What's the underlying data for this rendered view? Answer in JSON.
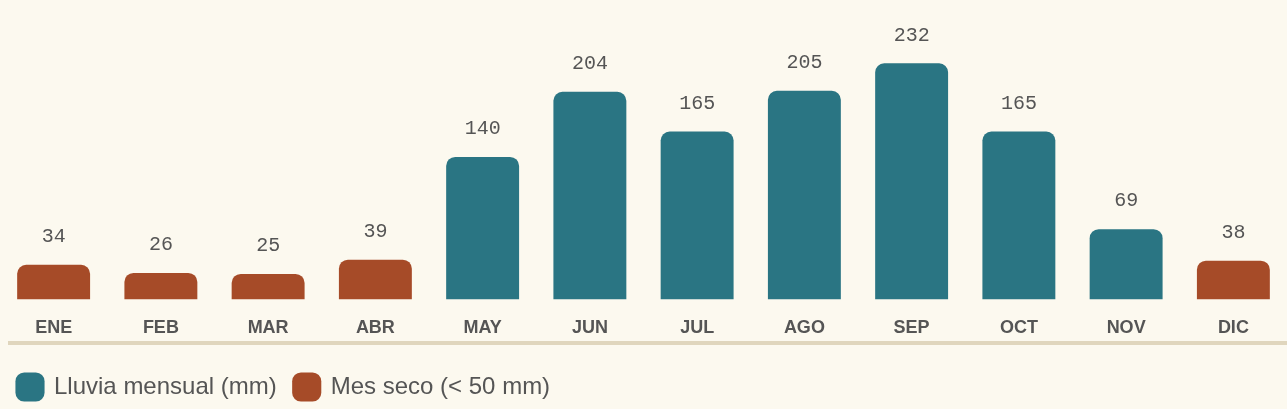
{
  "chart_data": {
    "type": "bar",
    "categories": [
      "ENE",
      "FEB",
      "MAR",
      "ABR",
      "MAY",
      "JUN",
      "JUL",
      "AGO",
      "SEP",
      "OCT",
      "NOV",
      "DIC"
    ],
    "series": [
      {
        "name": "Lluvia mensual (mm)",
        "color": "#2a7583",
        "values": [
          null,
          null,
          null,
          null,
          140,
          204,
          165,
          205,
          232,
          165,
          69,
          null
        ]
      },
      {
        "name": "Mes seco (< 50 mm)",
        "color": "#a64b28",
        "values": [
          34,
          26,
          25,
          39,
          null,
          null,
          null,
          null,
          null,
          null,
          null,
          38
        ]
      }
    ],
    "stacked": true,
    "data_labels": true,
    "grid": false,
    "legend": "bottom left",
    "tick_labels": "x"
  }
}
